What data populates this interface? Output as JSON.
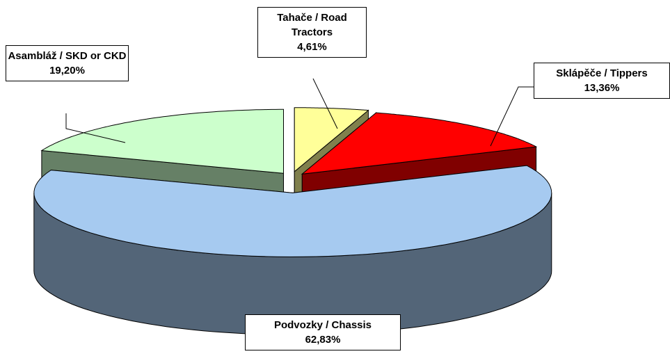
{
  "chart_data": {
    "type": "pie",
    "categories": [
      "Tahače / Road Tractors",
      "Sklápěče / Tippers",
      "Podvozky / Chassis",
      "Asambláž / SKD or CKD"
    ],
    "values": [
      4.61,
      13.36,
      62.83,
      19.2
    ],
    "value_labels": [
      "4,61%",
      "13,36%",
      "62,83%",
      "19,20%"
    ],
    "colors": [
      "#ffff99",
      "#ff0000",
      "#a6caf0",
      "#ccffcc"
    ]
  }
}
